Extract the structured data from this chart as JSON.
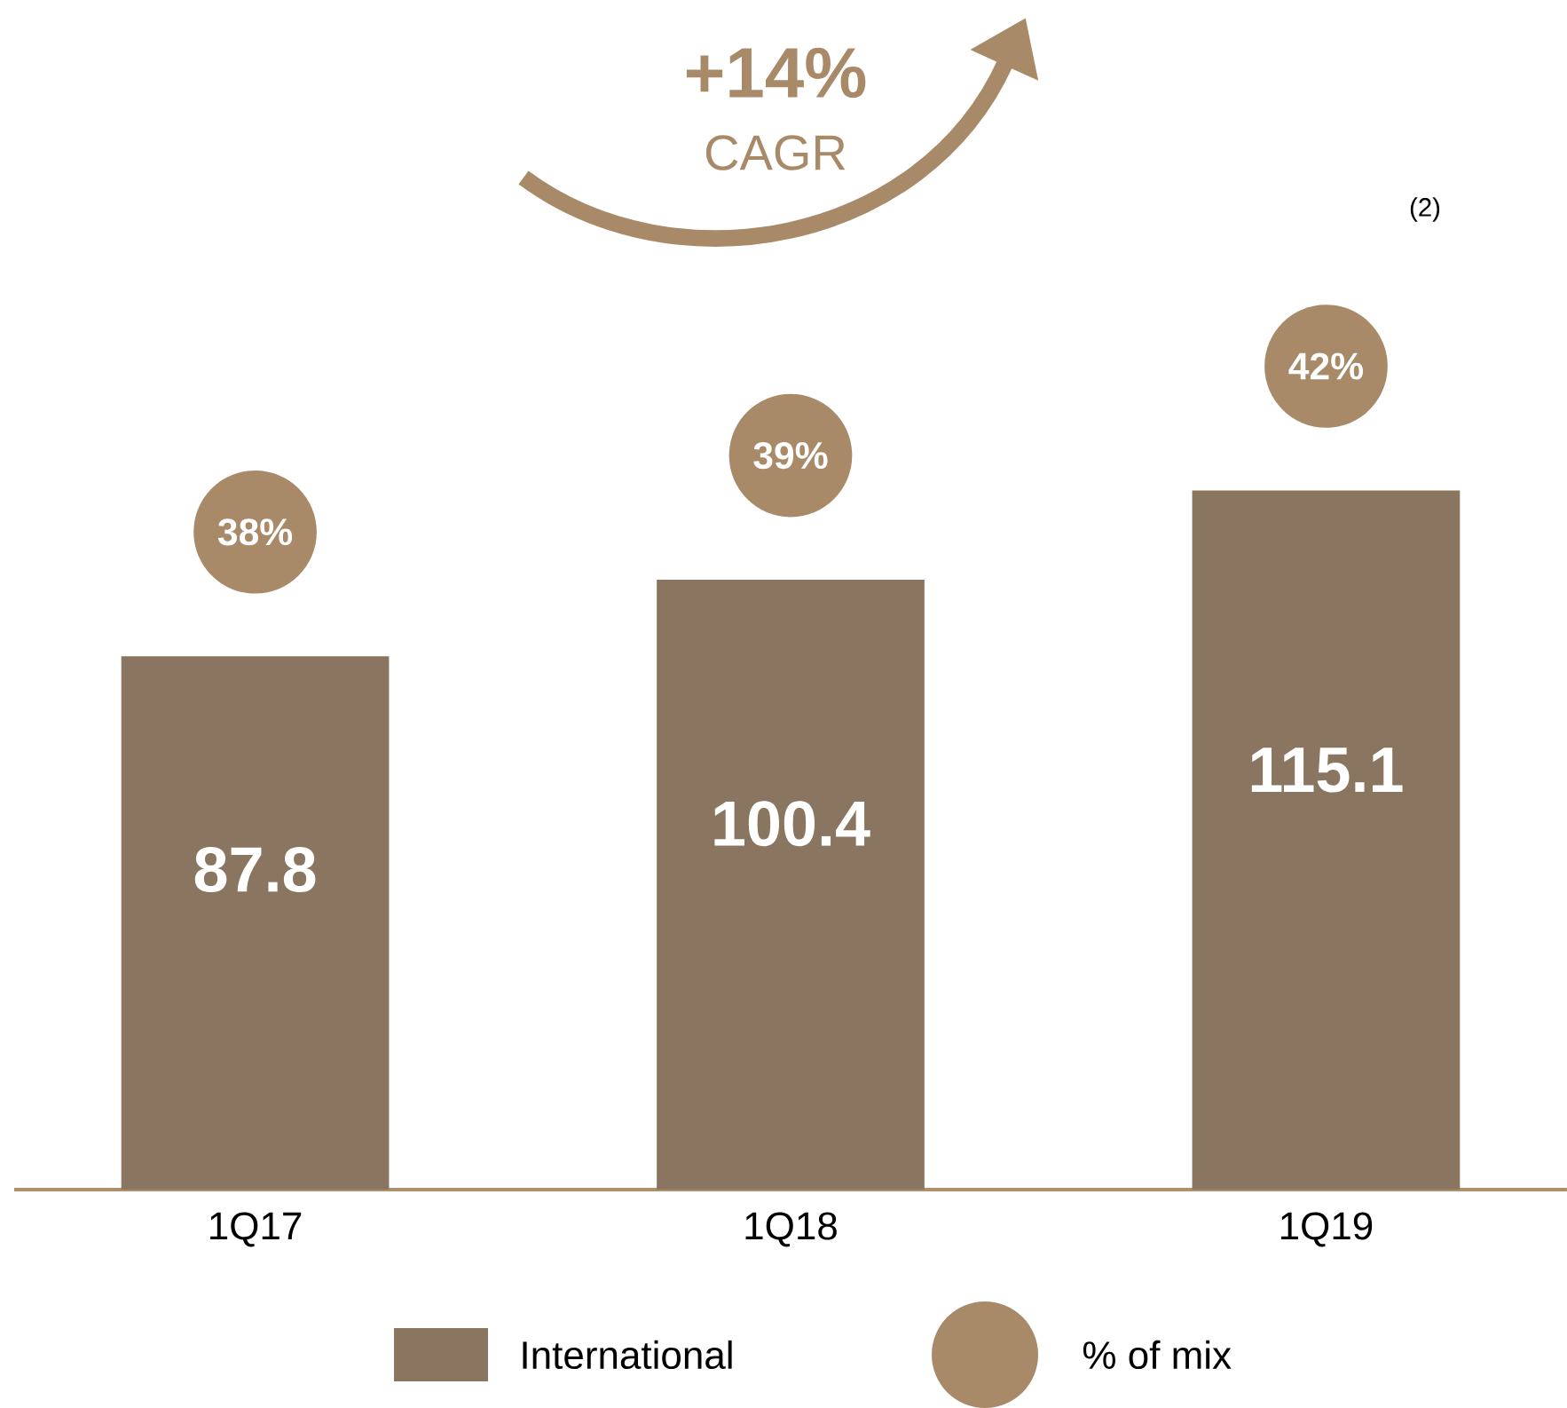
{
  "chart_data": {
    "type": "bar",
    "categories": [
      "1Q17",
      "1Q18",
      "1Q19"
    ],
    "series": [
      {
        "name": "International",
        "color": "#8a7660",
        "values": [
          87.8,
          100.4,
          115.1
        ]
      }
    ],
    "data_labels": true,
    "tick_labels": "x",
    "legend": "bottom",
    "annotations": [
      "+14%",
      "CAGR",
      "(2)",
      "% of mix",
      "38%",
      "39%",
      "42%"
    ]
  }
}
